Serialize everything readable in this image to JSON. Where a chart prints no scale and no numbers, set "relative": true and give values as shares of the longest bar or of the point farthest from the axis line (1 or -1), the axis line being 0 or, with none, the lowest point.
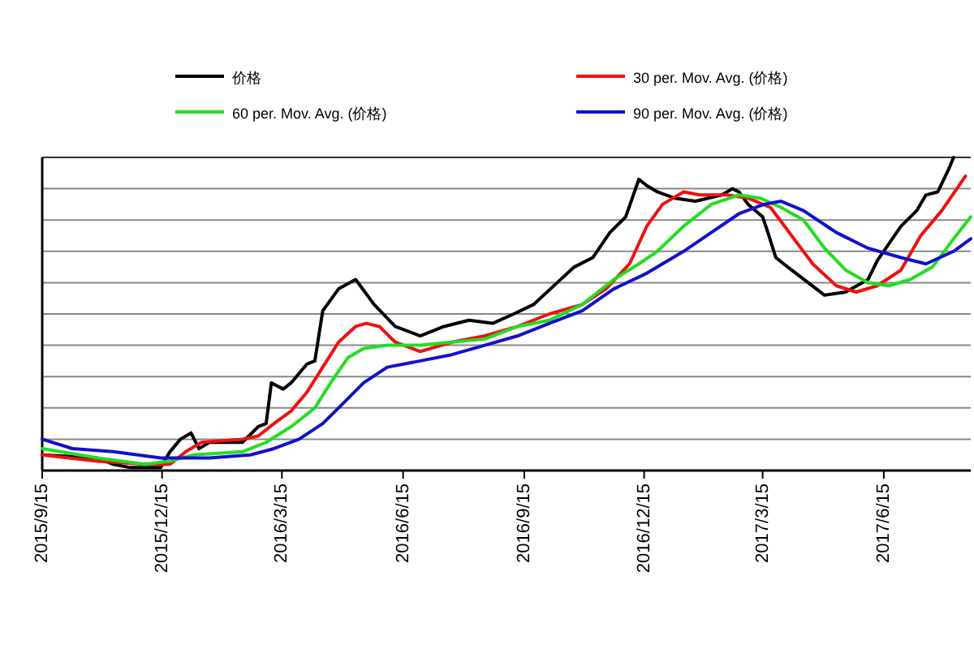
{
  "chart_data": {
    "type": "line",
    "relative": true,
    "grid": "y",
    "legend": "top",
    "line_style": "solid",
    "xlim": [
      "2015-09-15",
      "2017-08-20"
    ],
    "xticks": [
      {
        "value": "2015-09-15",
        "label": "2015/9/15"
      },
      {
        "value": "2015-12-15",
        "label": "2015/12/15"
      },
      {
        "value": "2016-03-15",
        "label": "2016/3/15"
      },
      {
        "value": "2016-06-15",
        "label": "2016/6/15"
      },
      {
        "value": "2016-09-15",
        "label": "2016/9/15"
      },
      {
        "value": "2016-12-15",
        "label": "2016/12/15"
      },
      {
        "value": "2017-03-15",
        "label": "2017/3/15"
      },
      {
        "value": "2017-06-15",
        "label": "2017/6/15"
      }
    ],
    "series": [
      {
        "name": "价格",
        "color": "#000000",
        "x": [
          "2015-09-15",
          "2015-10-27",
          "2015-11-08",
          "2015-11-20",
          "2015-12-14",
          "2015-12-21",
          "2015-12-29",
          "2016-01-06",
          "2016-01-12",
          "2016-01-20",
          "2016-02-14",
          "2016-02-26",
          "2016-03-03",
          "2016-03-07",
          "2016-03-16",
          "2016-03-22",
          "2016-04-03",
          "2016-04-09",
          "2016-04-15",
          "2016-04-27",
          "2016-05-10",
          "2016-05-24",
          "2016-06-09",
          "2016-06-28",
          "2016-07-16",
          "2016-08-04",
          "2016-08-22",
          "2016-09-07",
          "2016-09-22",
          "2016-10-10",
          "2016-10-23",
          "2016-11-06",
          "2016-11-19",
          "2016-12-01",
          "2016-12-11",
          "2016-12-17",
          "2016-12-25",
          "2017-01-07",
          "2017-01-23",
          "2017-02-12",
          "2017-02-20",
          "2017-02-25",
          "2017-03-04",
          "2017-03-15",
          "2017-03-19",
          "2017-03-25",
          "2017-04-03",
          "2017-05-01",
          "2017-05-17",
          "2017-06-03",
          "2017-06-10",
          "2017-06-28",
          "2017-07-10",
          "2017-07-17",
          "2017-07-26",
          "2017-08-03",
          "2017-08-07"
        ],
        "values": [
          0.05,
          0.04,
          0.02,
          0.01,
          0.01,
          0.06,
          0.1,
          0.12,
          0.07,
          0.09,
          0.09,
          0.14,
          0.15,
          0.28,
          0.26,
          0.28,
          0.34,
          0.35,
          0.51,
          0.58,
          0.61,
          0.53,
          0.46,
          0.43,
          0.46,
          0.48,
          0.47,
          0.5,
          0.53,
          0.6,
          0.65,
          0.68,
          0.76,
          0.81,
          0.93,
          0.91,
          0.89,
          0.87,
          0.86,
          0.88,
          0.9,
          0.89,
          0.85,
          0.81,
          0.76,
          0.68,
          0.65,
          0.56,
          0.57,
          0.61,
          0.67,
          0.78,
          0.83,
          0.88,
          0.89,
          0.96,
          1.0
        ]
      },
      {
        "name": "30 per. Mov. Avg. (价格)",
        "color": "#ee1111",
        "x": [
          "2015-09-15",
          "2015-10-27",
          "2015-12-02",
          "2015-12-21",
          "2016-01-02",
          "2016-01-14",
          "2016-02-14",
          "2016-02-26",
          "2016-03-09",
          "2016-03-22",
          "2016-04-03",
          "2016-04-15",
          "2016-04-27",
          "2016-05-10",
          "2016-05-18",
          "2016-05-28",
          "2016-06-09",
          "2016-06-28",
          "2016-07-22",
          "2016-08-16",
          "2016-09-10",
          "2016-10-04",
          "2016-10-29",
          "2016-11-16",
          "2016-12-04",
          "2016-12-17",
          "2016-12-29",
          "2017-01-14",
          "2017-01-26",
          "2017-02-16",
          "2017-03-04",
          "2017-03-21",
          "2017-04-06",
          "2017-04-22",
          "2017-05-10",
          "2017-05-25",
          "2017-06-10",
          "2017-06-28",
          "2017-07-13",
          "2017-07-29",
          "2017-08-16"
        ],
        "values": [
          0.05,
          0.03,
          0.02,
          0.02,
          0.06,
          0.09,
          0.1,
          0.11,
          0.15,
          0.19,
          0.25,
          0.33,
          0.41,
          0.46,
          0.47,
          0.46,
          0.41,
          0.38,
          0.41,
          0.43,
          0.46,
          0.5,
          0.53,
          0.58,
          0.66,
          0.78,
          0.85,
          0.89,
          0.88,
          0.88,
          0.87,
          0.84,
          0.75,
          0.66,
          0.59,
          0.57,
          0.59,
          0.64,
          0.75,
          0.83,
          0.94
        ]
      },
      {
        "name": "60 per. Mov. Avg. (价格)",
        "color": "#22dd22",
        "x": [
          "2015-09-15",
          "2015-10-27",
          "2015-12-02",
          "2015-12-21",
          "2016-01-08",
          "2016-02-14",
          "2016-03-03",
          "2016-03-22",
          "2016-04-09",
          "2016-04-21",
          "2016-05-04",
          "2016-05-16",
          "2016-06-03",
          "2016-06-28",
          "2016-07-22",
          "2016-08-16",
          "2016-09-10",
          "2016-10-04",
          "2016-10-29",
          "2016-11-22",
          "2016-12-11",
          "2016-12-25",
          "2017-01-14",
          "2017-02-04",
          "2017-02-25",
          "2017-03-13",
          "2017-03-29",
          "2017-04-15",
          "2017-05-01",
          "2017-05-17",
          "2017-06-03",
          "2017-06-19",
          "2017-07-05",
          "2017-07-22",
          "2017-08-07",
          "2017-08-20"
        ],
        "values": [
          0.07,
          0.04,
          0.02,
          0.03,
          0.05,
          0.06,
          0.09,
          0.14,
          0.2,
          0.28,
          0.36,
          0.39,
          0.4,
          0.4,
          0.41,
          0.42,
          0.46,
          0.48,
          0.53,
          0.61,
          0.66,
          0.7,
          0.78,
          0.85,
          0.88,
          0.87,
          0.84,
          0.8,
          0.71,
          0.64,
          0.6,
          0.59,
          0.61,
          0.65,
          0.74,
          0.81
        ]
      },
      {
        "name": "90 per. Mov. Avg. (价格)",
        "color": "#1111cc",
        "x": [
          "2015-09-15",
          "2015-10-08",
          "2015-11-08",
          "2015-12-14",
          "2016-01-20",
          "2016-02-20",
          "2016-03-09",
          "2016-03-28",
          "2016-04-15",
          "2016-04-27",
          "2016-05-16",
          "2016-06-03",
          "2016-06-28",
          "2016-07-22",
          "2016-08-16",
          "2016-09-10",
          "2016-10-04",
          "2016-10-29",
          "2016-11-22",
          "2016-12-17",
          "2017-01-14",
          "2017-02-04",
          "2017-02-25",
          "2017-03-16",
          "2017-03-29",
          "2017-04-15",
          "2017-05-10",
          "2017-06-03",
          "2017-06-28",
          "2017-07-17",
          "2017-08-07",
          "2017-08-20"
        ],
        "values": [
          0.1,
          0.07,
          0.06,
          0.04,
          0.04,
          0.05,
          0.07,
          0.1,
          0.15,
          0.2,
          0.28,
          0.33,
          0.35,
          0.37,
          0.4,
          0.43,
          0.47,
          0.51,
          0.58,
          0.63,
          0.7,
          0.76,
          0.82,
          0.85,
          0.86,
          0.83,
          0.76,
          0.71,
          0.68,
          0.66,
          0.7,
          0.74
        ]
      }
    ]
  }
}
